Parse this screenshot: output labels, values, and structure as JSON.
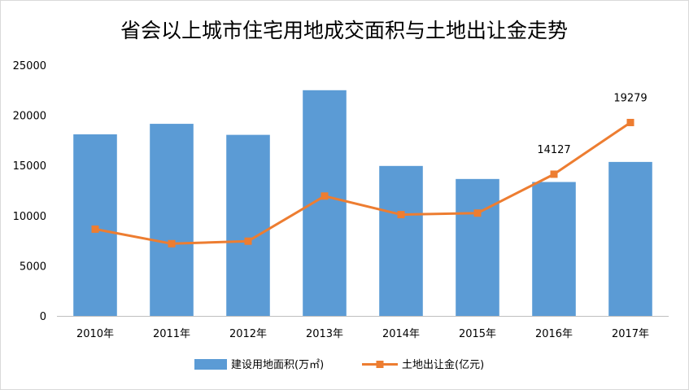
{
  "chart_data": {
    "type": "bar",
    "title": "省会以上城市住宅用地成交面积与土地出让金走势",
    "categories": [
      "2010年",
      "2011年",
      "2012年",
      "2013年",
      "2014年",
      "2015年",
      "2016年",
      "2017年"
    ],
    "ylim": [
      0,
      25000
    ],
    "yticks": [
      "0",
      "5000",
      "10000",
      "15000",
      "20000",
      "25000"
    ],
    "grid": false,
    "legend_position": "bottom",
    "series": [
      {
        "name": "建设用地面积(万㎡)",
        "type": "bar",
        "color": "#5B9BD5",
        "values": [
          18100,
          19150,
          18050,
          22500,
          14950,
          13650,
          13350,
          15350
        ]
      },
      {
        "name": "土地出让金(亿元)",
        "type": "line",
        "marker": "square",
        "color": "#ED7D31",
        "values": [
          8650,
          7200,
          7450,
          11950,
          10100,
          10250,
          14127,
          19279
        ],
        "data_labels": [
          null,
          null,
          null,
          null,
          null,
          null,
          "14127",
          "19279"
        ]
      }
    ]
  }
}
